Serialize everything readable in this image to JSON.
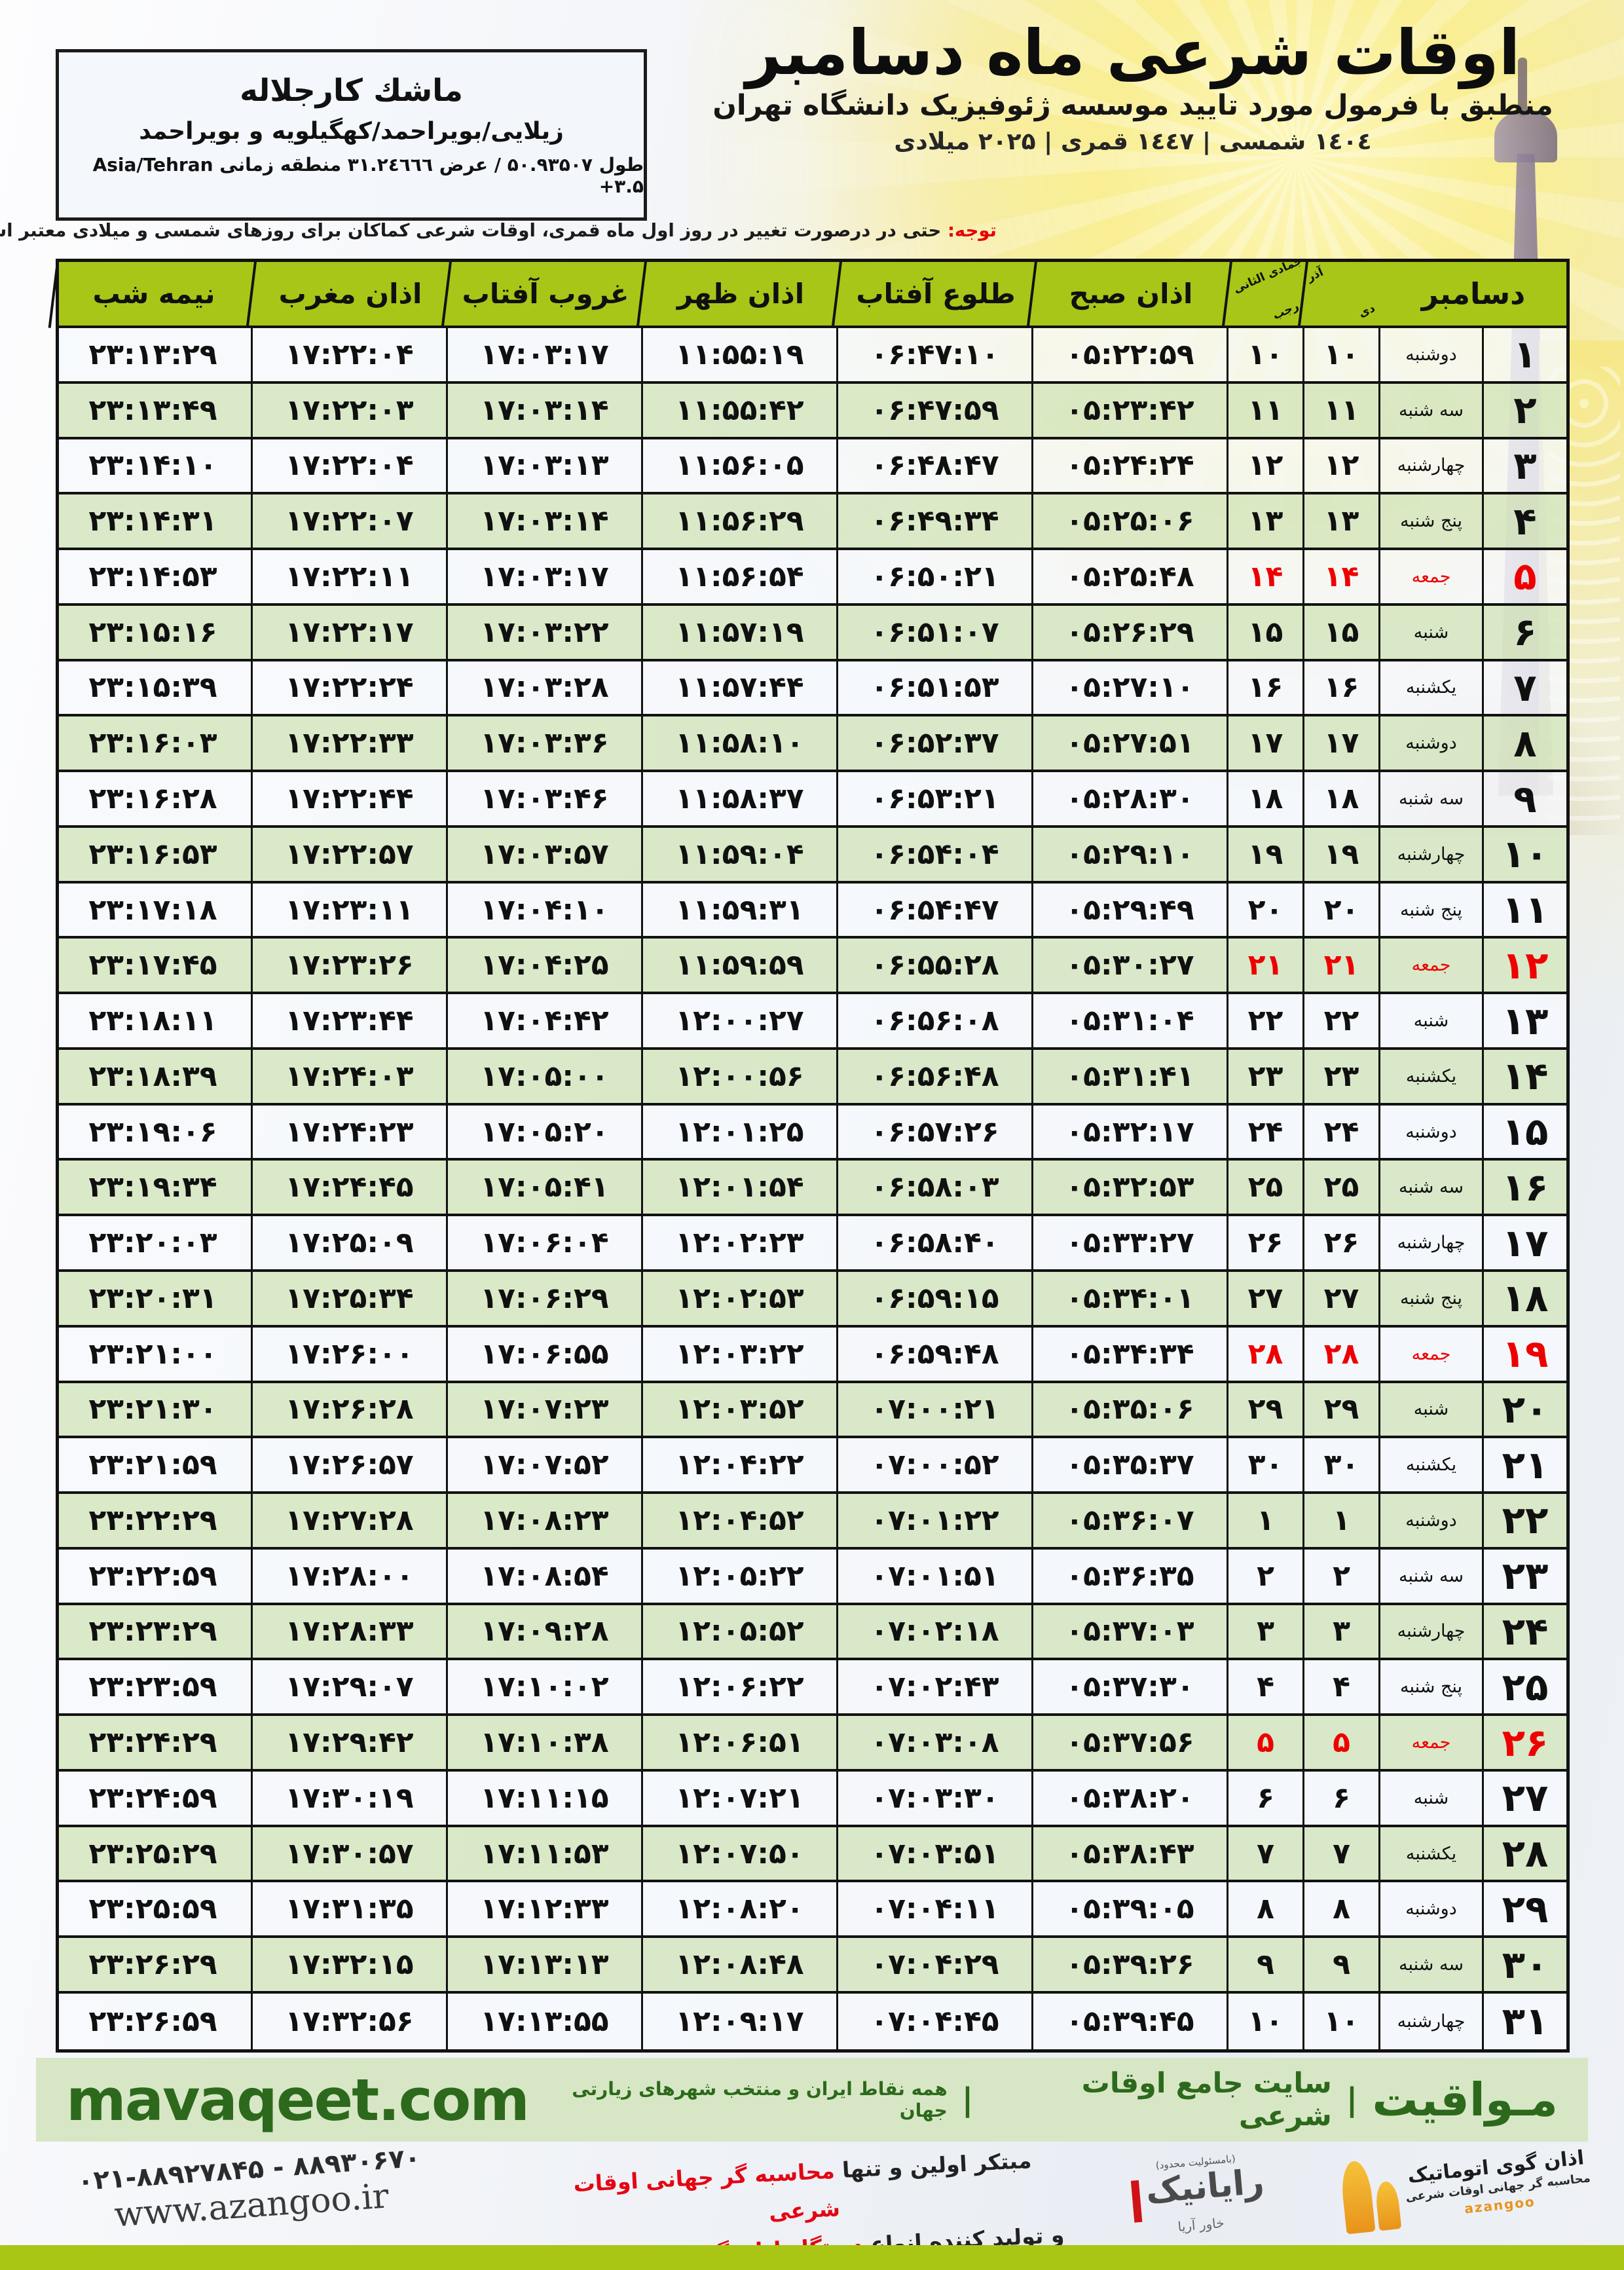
{
  "colors": {
    "header_green": "#a8c617",
    "row_green": "#d7e7c5",
    "row_white": "#f6f9fc",
    "red": "#ee0000",
    "band_green": "#d7e7c5",
    "dark_green": "#2d691c",
    "bottom_band": "#a9c614"
  },
  "info_box": {
    "title": "ماشك کارجلاله",
    "region": "زیلایی/بویراحمد/کهگیلویه و بویراحمد",
    "coords": "طول ۵۰.۹۳۵۰۷ / عرض ۳۱.۲٤٦٦٦ منطقه زمانی Asia/Tehran +۳.۵"
  },
  "header": {
    "title": "اوقات شرعی ماه دسامبر",
    "subtitle": "منطبق با فرمول مورد تایید موسسه ژئوفیزیک دانشگاه تهران",
    "date_line": "۱٤۰٤ شمسی | ۱٤٤۷ قمری | ۲۰۲۵ میلادی"
  },
  "notice": {
    "label": "توجه:",
    "text": "حتی در درصورت تغییر در روز اول ماه قمری، اوقات شرعی کماکان برای روزهای شمسی و میلادی معتبر است."
  },
  "table": {
    "headers": {
      "december": "دسامبر",
      "jalali_top": "آذر",
      "jalali_bottom": "دی",
      "hijri_top": "جمادی الثانی",
      "hijri_bottom": "رجب",
      "fajr": "اذان صبح",
      "sunrise": "طلوع آفتاب",
      "dhuhr": "اذان ظهر",
      "sunset": "غروب آفتاب",
      "maghrib": "اذان مغرب",
      "midnight": "نیمه شب"
    },
    "rows": [
      {
        "day": "۱",
        "weekday": "دوشنبه",
        "jalali": "۱۰",
        "hijri": "۱۰",
        "fajr": "۰۵:۲۲:۵۹",
        "sunrise": "۰۶:۴۷:۱۰",
        "dhuhr": "۱۱:۵۵:۱۹",
        "sunset": "۱۷:۰۳:۱۷",
        "maghrib": "۱۷:۲۲:۰۴",
        "midnight": "۲۳:۱۳:۲۹",
        "friday": false
      },
      {
        "day": "۲",
        "weekday": "سه شنبه",
        "jalali": "۱۱",
        "hijri": "۱۱",
        "fajr": "۰۵:۲۳:۴۲",
        "sunrise": "۰۶:۴۷:۵۹",
        "dhuhr": "۱۱:۵۵:۴۲",
        "sunset": "۱۷:۰۳:۱۴",
        "maghrib": "۱۷:۲۲:۰۳",
        "midnight": "۲۳:۱۳:۴۹",
        "friday": false
      },
      {
        "day": "۳",
        "weekday": "چهارشنبه",
        "jalali": "۱۲",
        "hijri": "۱۲",
        "fajr": "۰۵:۲۴:۲۴",
        "sunrise": "۰۶:۴۸:۴۷",
        "dhuhr": "۱۱:۵۶:۰۵",
        "sunset": "۱۷:۰۳:۱۳",
        "maghrib": "۱۷:۲۲:۰۴",
        "midnight": "۲۳:۱۴:۱۰",
        "friday": false
      },
      {
        "day": "۴",
        "weekday": "پنج شنبه",
        "jalali": "۱۳",
        "hijri": "۱۳",
        "fajr": "۰۵:۲۵:۰۶",
        "sunrise": "۰۶:۴۹:۳۴",
        "dhuhr": "۱۱:۵۶:۲۹",
        "sunset": "۱۷:۰۳:۱۴",
        "maghrib": "۱۷:۲۲:۰۷",
        "midnight": "۲۳:۱۴:۳۱",
        "friday": false
      },
      {
        "day": "۵",
        "weekday": "جمعه",
        "jalali": "۱۴",
        "hijri": "۱۴",
        "fajr": "۰۵:۲۵:۴۸",
        "sunrise": "۰۶:۵۰:۲۱",
        "dhuhr": "۱۱:۵۶:۵۴",
        "sunset": "۱۷:۰۳:۱۷",
        "maghrib": "۱۷:۲۲:۱۱",
        "midnight": "۲۳:۱۴:۵۳",
        "friday": true
      },
      {
        "day": "۶",
        "weekday": "شنبه",
        "jalali": "۱۵",
        "hijri": "۱۵",
        "fajr": "۰۵:۲۶:۲۹",
        "sunrise": "۰۶:۵۱:۰۷",
        "dhuhr": "۱۱:۵۷:۱۹",
        "sunset": "۱۷:۰۳:۲۲",
        "maghrib": "۱۷:۲۲:۱۷",
        "midnight": "۲۳:۱۵:۱۶",
        "friday": false
      },
      {
        "day": "۷",
        "weekday": "یکشنبه",
        "jalali": "۱۶",
        "hijri": "۱۶",
        "fajr": "۰۵:۲۷:۱۰",
        "sunrise": "۰۶:۵۱:۵۳",
        "dhuhr": "۱۱:۵۷:۴۴",
        "sunset": "۱۷:۰۳:۲۸",
        "maghrib": "۱۷:۲۲:۲۴",
        "midnight": "۲۳:۱۵:۳۹",
        "friday": false
      },
      {
        "day": "۸",
        "weekday": "دوشنبه",
        "jalali": "۱۷",
        "hijri": "۱۷",
        "fajr": "۰۵:۲۷:۵۱",
        "sunrise": "۰۶:۵۲:۳۷",
        "dhuhr": "۱۱:۵۸:۱۰",
        "sunset": "۱۷:۰۳:۳۶",
        "maghrib": "۱۷:۲۲:۳۳",
        "midnight": "۲۳:۱۶:۰۳",
        "friday": false
      },
      {
        "day": "۹",
        "weekday": "سه شنبه",
        "jalali": "۱۸",
        "hijri": "۱۸",
        "fajr": "۰۵:۲۸:۳۰",
        "sunrise": "۰۶:۵۳:۲۱",
        "dhuhr": "۱۱:۵۸:۳۷",
        "sunset": "۱۷:۰۳:۴۶",
        "maghrib": "۱۷:۲۲:۴۴",
        "midnight": "۲۳:۱۶:۲۸",
        "friday": false
      },
      {
        "day": "۱۰",
        "weekday": "چهارشنبه",
        "jalali": "۱۹",
        "hijri": "۱۹",
        "fajr": "۰۵:۲۹:۱۰",
        "sunrise": "۰۶:۵۴:۰۴",
        "dhuhr": "۱۱:۵۹:۰۴",
        "sunset": "۱۷:۰۳:۵۷",
        "maghrib": "۱۷:۲۲:۵۷",
        "midnight": "۲۳:۱۶:۵۳",
        "friday": false
      },
      {
        "day": "۱۱",
        "weekday": "پنج شنبه",
        "jalali": "۲۰",
        "hijri": "۲۰",
        "fajr": "۰۵:۲۹:۴۹",
        "sunrise": "۰۶:۵۴:۴۷",
        "dhuhr": "۱۱:۵۹:۳۱",
        "sunset": "۱۷:۰۴:۱۰",
        "maghrib": "۱۷:۲۳:۱۱",
        "midnight": "۲۳:۱۷:۱۸",
        "friday": false
      },
      {
        "day": "۱۲",
        "weekday": "جمعه",
        "jalali": "۲۱",
        "hijri": "۲۱",
        "fajr": "۰۵:۳۰:۲۷",
        "sunrise": "۰۶:۵۵:۲۸",
        "dhuhr": "۱۱:۵۹:۵۹",
        "sunset": "۱۷:۰۴:۲۵",
        "maghrib": "۱۷:۲۳:۲۶",
        "midnight": "۲۳:۱۷:۴۵",
        "friday": true
      },
      {
        "day": "۱۳",
        "weekday": "شنبه",
        "jalali": "۲۲",
        "hijri": "۲۲",
        "fajr": "۰۵:۳۱:۰۴",
        "sunrise": "۰۶:۵۶:۰۸",
        "dhuhr": "۱۲:۰۰:۲۷",
        "sunset": "۱۷:۰۴:۴۲",
        "maghrib": "۱۷:۲۳:۴۴",
        "midnight": "۲۳:۱۸:۱۱",
        "friday": false
      },
      {
        "day": "۱۴",
        "weekday": "یکشنبه",
        "jalali": "۲۳",
        "hijri": "۲۳",
        "fajr": "۰۵:۳۱:۴۱",
        "sunrise": "۰۶:۵۶:۴۸",
        "dhuhr": "۱۲:۰۰:۵۶",
        "sunset": "۱۷:۰۵:۰۰",
        "maghrib": "۱۷:۲۴:۰۳",
        "midnight": "۲۳:۱۸:۳۹",
        "friday": false
      },
      {
        "day": "۱۵",
        "weekday": "دوشنبه",
        "jalali": "۲۴",
        "hijri": "۲۴",
        "fajr": "۰۵:۳۲:۱۷",
        "sunrise": "۰۶:۵۷:۲۶",
        "dhuhr": "۱۲:۰۱:۲۵",
        "sunset": "۱۷:۰۵:۲۰",
        "maghrib": "۱۷:۲۴:۲۳",
        "midnight": "۲۳:۱۹:۰۶",
        "friday": false
      },
      {
        "day": "۱۶",
        "weekday": "سه شنبه",
        "jalali": "۲۵",
        "hijri": "۲۵",
        "fajr": "۰۵:۳۲:۵۳",
        "sunrise": "۰۶:۵۸:۰۳",
        "dhuhr": "۱۲:۰۱:۵۴",
        "sunset": "۱۷:۰۵:۴۱",
        "maghrib": "۱۷:۲۴:۴۵",
        "midnight": "۲۳:۱۹:۳۴",
        "friday": false
      },
      {
        "day": "۱۷",
        "weekday": "چهارشنبه",
        "jalali": "۲۶",
        "hijri": "۲۶",
        "fajr": "۰۵:۳۳:۲۷",
        "sunrise": "۰۶:۵۸:۴۰",
        "dhuhr": "۱۲:۰۲:۲۳",
        "sunset": "۱۷:۰۶:۰۴",
        "maghrib": "۱۷:۲۵:۰۹",
        "midnight": "۲۳:۲۰:۰۳",
        "friday": false
      },
      {
        "day": "۱۸",
        "weekday": "پنج شنبه",
        "jalali": "۲۷",
        "hijri": "۲۷",
        "fajr": "۰۵:۳۴:۰۱",
        "sunrise": "۰۶:۵۹:۱۵",
        "dhuhr": "۱۲:۰۲:۵۳",
        "sunset": "۱۷:۰۶:۲۹",
        "maghrib": "۱۷:۲۵:۳۴",
        "midnight": "۲۳:۲۰:۳۱",
        "friday": false
      },
      {
        "day": "۱۹",
        "weekday": "جمعه",
        "jalali": "۲۸",
        "hijri": "۲۸",
        "fajr": "۰۵:۳۴:۳۴",
        "sunrise": "۰۶:۵۹:۴۸",
        "dhuhr": "۱۲:۰۳:۲۲",
        "sunset": "۱۷:۰۶:۵۵",
        "maghrib": "۱۷:۲۶:۰۰",
        "midnight": "۲۳:۲۱:۰۰",
        "friday": true
      },
      {
        "day": "۲۰",
        "weekday": "شنبه",
        "jalali": "۲۹",
        "hijri": "۲۹",
        "fajr": "۰۵:۳۵:۰۶",
        "sunrise": "۰۷:۰۰:۲۱",
        "dhuhr": "۱۲:۰۳:۵۲",
        "sunset": "۱۷:۰۷:۲۳",
        "maghrib": "۱۷:۲۶:۲۸",
        "midnight": "۲۳:۲۱:۳۰",
        "friday": false
      },
      {
        "day": "۲۱",
        "weekday": "یکشنبه",
        "jalali": "۳۰",
        "hijri": "۳۰",
        "fajr": "۰۵:۳۵:۳۷",
        "sunrise": "۰۷:۰۰:۵۲",
        "dhuhr": "۱۲:۰۴:۲۲",
        "sunset": "۱۷:۰۷:۵۲",
        "maghrib": "۱۷:۲۶:۵۷",
        "midnight": "۲۳:۲۱:۵۹",
        "friday": false
      },
      {
        "day": "۲۲",
        "weekday": "دوشنبه",
        "jalali": "۱",
        "hijri": "۱",
        "fajr": "۰۵:۳۶:۰۷",
        "sunrise": "۰۷:۰۱:۲۲",
        "dhuhr": "۱۲:۰۴:۵۲",
        "sunset": "۱۷:۰۸:۲۳",
        "maghrib": "۱۷:۲۷:۲۸",
        "midnight": "۲۳:۲۲:۲۹",
        "friday": false
      },
      {
        "day": "۲۳",
        "weekday": "سه شنبه",
        "jalali": "۲",
        "hijri": "۲",
        "fajr": "۰۵:۳۶:۳۵",
        "sunrise": "۰۷:۰۱:۵۱",
        "dhuhr": "۱۲:۰۵:۲۲",
        "sunset": "۱۷:۰۸:۵۴",
        "maghrib": "۱۷:۲۸:۰۰",
        "midnight": "۲۳:۲۲:۵۹",
        "friday": false
      },
      {
        "day": "۲۴",
        "weekday": "چهارشنبه",
        "jalali": "۳",
        "hijri": "۳",
        "fajr": "۰۵:۳۷:۰۳",
        "sunrise": "۰۷:۰۲:۱۸",
        "dhuhr": "۱۲:۰۵:۵۲",
        "sunset": "۱۷:۰۹:۲۸",
        "maghrib": "۱۷:۲۸:۳۳",
        "midnight": "۲۳:۲۳:۲۹",
        "friday": false
      },
      {
        "day": "۲۵",
        "weekday": "پنج شنبه",
        "jalali": "۴",
        "hijri": "۴",
        "fajr": "۰۵:۳۷:۳۰",
        "sunrise": "۰۷:۰۲:۴۳",
        "dhuhr": "۱۲:۰۶:۲۲",
        "sunset": "۱۷:۱۰:۰۲",
        "maghrib": "۱۷:۲۹:۰۷",
        "midnight": "۲۳:۲۳:۵۹",
        "friday": false
      },
      {
        "day": "۲۶",
        "weekday": "جمعه",
        "jalali": "۵",
        "hijri": "۵",
        "fajr": "۰۵:۳۷:۵۶",
        "sunrise": "۰۷:۰۳:۰۸",
        "dhuhr": "۱۲:۰۶:۵۱",
        "sunset": "۱۷:۱۰:۳۸",
        "maghrib": "۱۷:۲۹:۴۲",
        "midnight": "۲۳:۲۴:۲۹",
        "friday": true
      },
      {
        "day": "۲۷",
        "weekday": "شنبه",
        "jalali": "۶",
        "hijri": "۶",
        "fajr": "۰۵:۳۸:۲۰",
        "sunrise": "۰۷:۰۳:۳۰",
        "dhuhr": "۱۲:۰۷:۲۱",
        "sunset": "۱۷:۱۱:۱۵",
        "maghrib": "۱۷:۳۰:۱۹",
        "midnight": "۲۳:۲۴:۵۹",
        "friday": false
      },
      {
        "day": "۲۸",
        "weekday": "یکشنبه",
        "jalali": "۷",
        "hijri": "۷",
        "fajr": "۰۵:۳۸:۴۳",
        "sunrise": "۰۷:۰۳:۵۱",
        "dhuhr": "۱۲:۰۷:۵۰",
        "sunset": "۱۷:۱۱:۵۳",
        "maghrib": "۱۷:۳۰:۵۷",
        "midnight": "۲۳:۲۵:۲۹",
        "friday": false
      },
      {
        "day": "۲۹",
        "weekday": "دوشنبه",
        "jalali": "۸",
        "hijri": "۸",
        "fajr": "۰۵:۳۹:۰۵",
        "sunrise": "۰۷:۰۴:۱۱",
        "dhuhr": "۱۲:۰۸:۲۰",
        "sunset": "۱۷:۱۲:۳۳",
        "maghrib": "۱۷:۳۱:۳۵",
        "midnight": "۲۳:۲۵:۵۹",
        "friday": false
      },
      {
        "day": "۳۰",
        "weekday": "سه شنبه",
        "jalali": "۹",
        "hijri": "۹",
        "fajr": "۰۵:۳۹:۲۶",
        "sunrise": "۰۷:۰۴:۲۹",
        "dhuhr": "۱۲:۰۸:۴۸",
        "sunset": "۱۷:۱۳:۱۳",
        "maghrib": "۱۷:۳۲:۱۵",
        "midnight": "۲۳:۲۶:۲۹",
        "friday": false
      },
      {
        "day": "۳۱",
        "weekday": "چهارشنبه",
        "jalali": "۱۰",
        "hijri": "۱۰",
        "fajr": "۰۵:۳۹:۴۵",
        "sunrise": "۰۷:۰۴:۴۵",
        "dhuhr": "۱۲:۰۹:۱۷",
        "sunset": "۱۷:۱۳:۵۵",
        "maghrib": "۱۷:۳۲:۵۶",
        "midnight": "۲۳:۲۶:۵۹",
        "friday": false
      }
    ]
  },
  "band": {
    "site_en": "mavaqeet.com",
    "brand_name": "مـواقیت",
    "sep": "|",
    "tag1": "سایت جامع اوقات شرعی",
    "tag2": "همه نقاط ایران و منتخب شهرهای زیارتی جهان"
  },
  "footer": {
    "phones": "۰۲۱-۸۸۹۲۷۸۴۵ - ۸۸۹۳۰۶۷۰",
    "website": "www.azangoo.ir",
    "line1_black": "مبتکر اولین و تنها ",
    "line1_red": "محاسبه گر جهانی اوقات شرعی",
    "line2_black": "و تولید کننده انواع ",
    "line2_red": "دستگاه اذان گوی تمام خودکار ماهواره ای",
    "rayanik_note": "(بامسئولیت محدود)",
    "rayanik_name": "رایانیک",
    "rayanik_sub": "خاور آریا",
    "azangoo_line1": "اذان گوی اتوماتیک",
    "azangoo_line2": "محاسبه گر جهانی اوقات شرعی",
    "azangoo_latin": "azangoo"
  }
}
